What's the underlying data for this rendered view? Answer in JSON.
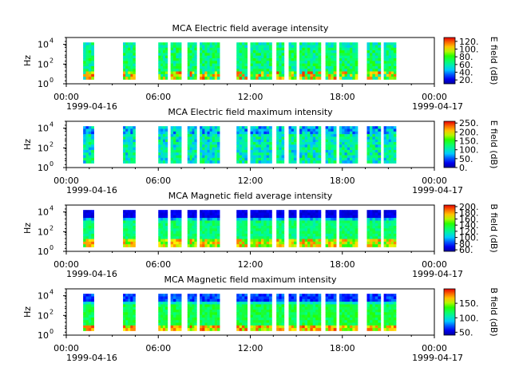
{
  "chart_data": [
    {
      "type": "heatmap",
      "title": "MCA  Electric field average intensity",
      "ylabel": "Hz",
      "y_scale": "log",
      "ylim_exponent": [
        0,
        4.7
      ],
      "y_ticks": [
        {
          "base": "10",
          "exp": "0"
        },
        {
          "base": "10",
          "exp": "2"
        },
        {
          "base": "10",
          "exp": "4"
        }
      ],
      "x_ticks": [
        "00:00",
        "06:00",
        "12:00",
        "18:00",
        "00:00"
      ],
      "x_dates": [
        "1999-04-16",
        "1999-04-17"
      ],
      "x_range_hours": [
        0,
        24
      ],
      "colorbar": {
        "label": "E field (dB)",
        "range": [
          10,
          130
        ],
        "ticks": [
          "20.",
          "40.",
          "60.",
          "80.",
          "100.",
          "120."
        ],
        "tick_values": [
          20,
          40,
          60,
          80,
          100,
          120
        ]
      },
      "style": "e_avg"
    },
    {
      "type": "heatmap",
      "title": "MCA  Electric field maximum intensity",
      "ylabel": "Hz",
      "y_scale": "log",
      "ylim_exponent": [
        0,
        4.7
      ],
      "y_ticks": [
        {
          "base": "10",
          "exp": "0"
        },
        {
          "base": "10",
          "exp": "2"
        },
        {
          "base": "10",
          "exp": "4"
        }
      ],
      "x_ticks": [
        "00:00",
        "06:00",
        "12:00",
        "18:00",
        "00:00"
      ],
      "x_dates": [
        "1999-04-16",
        "1999-04-17"
      ],
      "x_range_hours": [
        0,
        24
      ],
      "colorbar": {
        "label": "E field (dB)",
        "range": [
          0,
          260
        ],
        "ticks": [
          "0.",
          "50.",
          "100.",
          "150.",
          "200.",
          "250."
        ],
        "tick_values": [
          0,
          50,
          100,
          150,
          200,
          250
        ]
      },
      "style": "e_max"
    },
    {
      "type": "heatmap",
      "title": "MCA  Magnetic field average intensity",
      "ylabel": "Hz",
      "y_scale": "log",
      "ylim_exponent": [
        0,
        4.7
      ],
      "y_ticks": [
        {
          "base": "10",
          "exp": "0"
        },
        {
          "base": "10",
          "exp": "2"
        },
        {
          "base": "10",
          "exp": "4"
        }
      ],
      "x_ticks": [
        "00:00",
        "06:00",
        "12:00",
        "18:00",
        "00:00"
      ],
      "x_dates": [
        "1999-04-16",
        "1999-04-17"
      ],
      "x_range_hours": [
        0,
        24
      ],
      "colorbar": {
        "label": "B field (dB)",
        "range": [
          55,
          205
        ],
        "ticks": [
          "60.",
          "80.",
          "100.",
          "120.",
          "140.",
          "160.",
          "180.",
          "200."
        ],
        "tick_values": [
          60,
          80,
          100,
          120,
          140,
          160,
          180,
          200
        ]
      },
      "style": "b_avg"
    },
    {
      "type": "heatmap",
      "title": "MCA  Magnetic field maximum intensity",
      "ylabel": "Hz",
      "y_scale": "log",
      "ylim_exponent": [
        0,
        4.7
      ],
      "y_ticks": [
        {
          "base": "10",
          "exp": "0"
        },
        {
          "base": "10",
          "exp": "2"
        },
        {
          "base": "10",
          "exp": "4"
        }
      ],
      "x_ticks": [
        "00:00",
        "06:00",
        "12:00",
        "18:00",
        "00:00"
      ],
      "x_dates": [
        "1999-04-16",
        "1999-04-17"
      ],
      "x_range_hours": [
        0,
        24
      ],
      "colorbar": {
        "label": "B field (dB)",
        "range": [
          40,
          200
        ],
        "ticks": [
          "50.",
          "100.",
          "150."
        ],
        "tick_values": [
          50,
          100,
          150
        ]
      },
      "style": "b_max"
    }
  ],
  "data_segments_hours": [
    [
      1.1,
      1.8
    ],
    [
      3.7,
      4.5
    ],
    [
      6.0,
      6.6
    ],
    [
      6.8,
      7.5
    ],
    [
      7.9,
      8.5
    ],
    [
      8.7,
      10.0
    ],
    [
      11.1,
      11.8
    ],
    [
      12.0,
      13.4
    ],
    [
      13.7,
      14.2
    ],
    [
      14.5,
      15.0
    ],
    [
      15.2,
      16.6
    ],
    [
      16.9,
      17.6
    ],
    [
      17.8,
      19.0
    ],
    [
      19.6,
      20.5
    ],
    [
      20.7,
      21.5
    ]
  ]
}
